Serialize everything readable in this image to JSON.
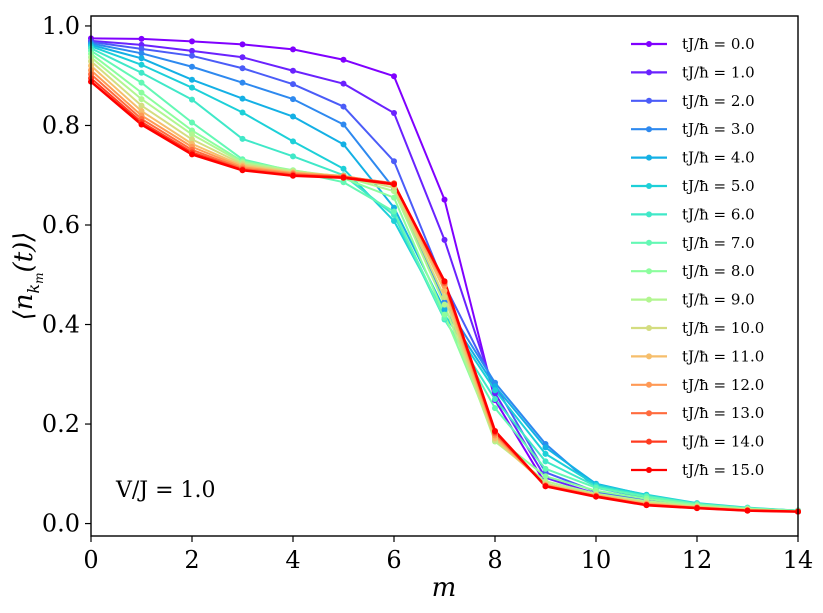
{
  "chart_data": {
    "type": "line",
    "xlabel": "m",
    "ylabel": "⟨n_{k_m}(t)⟩",
    "xlim": [
      0,
      14
    ],
    "ylim": [
      -0.025,
      1.02
    ],
    "xticks": [
      "0",
      "2",
      "4",
      "6",
      "8",
      "10",
      "12",
      "14"
    ],
    "yticks": [
      "0.0",
      "0.2",
      "0.4",
      "0.6",
      "0.8",
      "1.0"
    ],
    "annotation": "V/J = 1.0",
    "legend_position": "top-right",
    "grid": false,
    "x": [
      0,
      1,
      2,
      3,
      4,
      5,
      6,
      7,
      8,
      9,
      10,
      11,
      12,
      13,
      14
    ],
    "series": [
      {
        "name": "tJ/ħ = 0.0",
        "color": "#8000ff",
        "values": [
          0.975,
          0.974,
          0.969,
          0.963,
          0.953,
          0.932,
          0.899,
          0.651,
          0.248,
          0.08,
          0.056,
          0.04,
          0.032,
          0.027,
          0.024
        ]
      },
      {
        "name": "tJ/ħ = 1.0",
        "color": "#6a22fe",
        "values": [
          0.97,
          0.962,
          0.95,
          0.937,
          0.91,
          0.884,
          0.825,
          0.57,
          0.262,
          0.092,
          0.06,
          0.043,
          0.034,
          0.028,
          0.025
        ]
      },
      {
        "name": "tJ/ħ = 2.0",
        "color": "#4b5cf8",
        "values": [
          0.968,
          0.954,
          0.94,
          0.915,
          0.883,
          0.838,
          0.728,
          0.48,
          0.278,
          0.103,
          0.064,
          0.046,
          0.035,
          0.029,
          0.025
        ]
      },
      {
        "name": "tJ/ħ = 3.0",
        "color": "#2e89ef",
        "values": [
          0.965,
          0.945,
          0.918,
          0.886,
          0.853,
          0.802,
          0.673,
          0.445,
          0.283,
          0.16,
          0.072,
          0.052,
          0.038,
          0.03,
          0.026
        ]
      },
      {
        "name": "tJ/ħ = 4.0",
        "color": "#14b0e5",
        "values": [
          0.962,
          0.935,
          0.892,
          0.854,
          0.818,
          0.762,
          0.635,
          0.43,
          0.276,
          0.153,
          0.08,
          0.057,
          0.04,
          0.031,
          0.026
        ]
      },
      {
        "name": "tJ/ħ = 5.0",
        "color": "#1dd0d8",
        "values": [
          0.959,
          0.922,
          0.876,
          0.826,
          0.768,
          0.713,
          0.608,
          0.42,
          0.268,
          0.14,
          0.078,
          0.058,
          0.041,
          0.032,
          0.026
        ]
      },
      {
        "name": "tJ/ħ = 6.0",
        "color": "#40e8c8",
        "values": [
          0.955,
          0.906,
          0.852,
          0.773,
          0.738,
          0.7,
          0.62,
          0.41,
          0.25,
          0.125,
          0.075,
          0.056,
          0.04,
          0.031,
          0.026
        ]
      },
      {
        "name": "tJ/ħ = 7.0",
        "color": "#64f8b4",
        "values": [
          0.95,
          0.886,
          0.806,
          0.732,
          0.708,
          0.686,
          0.627,
          0.413,
          0.232,
          0.11,
          0.072,
          0.054,
          0.039,
          0.031,
          0.026
        ]
      },
      {
        "name": "tJ/ħ = 8.0",
        "color": "#8cfe9e",
        "values": [
          0.944,
          0.866,
          0.79,
          0.728,
          0.71,
          0.694,
          0.655,
          0.42,
          0.175,
          0.095,
          0.066,
          0.05,
          0.037,
          0.03,
          0.025
        ]
      },
      {
        "name": "tJ/ħ = 9.0",
        "color": "#b2f690",
        "values": [
          0.937,
          0.853,
          0.782,
          0.725,
          0.709,
          0.697,
          0.668,
          0.44,
          0.165,
          0.085,
          0.06,
          0.045,
          0.035,
          0.029,
          0.025
        ]
      },
      {
        "name": "tJ/ħ = 10.0",
        "color": "#d4dd80",
        "values": [
          0.929,
          0.84,
          0.772,
          0.722,
          0.707,
          0.698,
          0.675,
          0.455,
          0.168,
          0.08,
          0.058,
          0.042,
          0.034,
          0.028,
          0.025
        ]
      },
      {
        "name": "tJ/ħ = 11.0",
        "color": "#f6be6b",
        "values": [
          0.92,
          0.829,
          0.763,
          0.719,
          0.705,
          0.699,
          0.68,
          0.468,
          0.172,
          0.078,
          0.057,
          0.04,
          0.033,
          0.027,
          0.024
        ]
      },
      {
        "name": "tJ/ħ = 12.0",
        "color": "#ff9955",
        "values": [
          0.911,
          0.82,
          0.757,
          0.716,
          0.704,
          0.698,
          0.683,
          0.478,
          0.177,
          0.077,
          0.056,
          0.039,
          0.032,
          0.027,
          0.024
        ]
      },
      {
        "name": "tJ/ħ = 13.0",
        "color": "#ff6b3e",
        "values": [
          0.903,
          0.813,
          0.751,
          0.713,
          0.702,
          0.697,
          0.684,
          0.483,
          0.181,
          0.076,
          0.055,
          0.038,
          0.032,
          0.026,
          0.024
        ]
      },
      {
        "name": "tJ/ħ = 14.0",
        "color": "#ff3b20",
        "values": [
          0.895,
          0.807,
          0.746,
          0.711,
          0.7,
          0.696,
          0.683,
          0.486,
          0.184,
          0.075,
          0.055,
          0.037,
          0.031,
          0.026,
          0.024
        ]
      },
      {
        "name": "tJ/ħ = 15.0",
        "color": "#ff0000",
        "values": [
          0.888,
          0.802,
          0.742,
          0.71,
          0.699,
          0.695,
          0.682,
          0.487,
          0.186,
          0.075,
          0.054,
          0.037,
          0.031,
          0.026,
          0.024
        ]
      }
    ]
  }
}
